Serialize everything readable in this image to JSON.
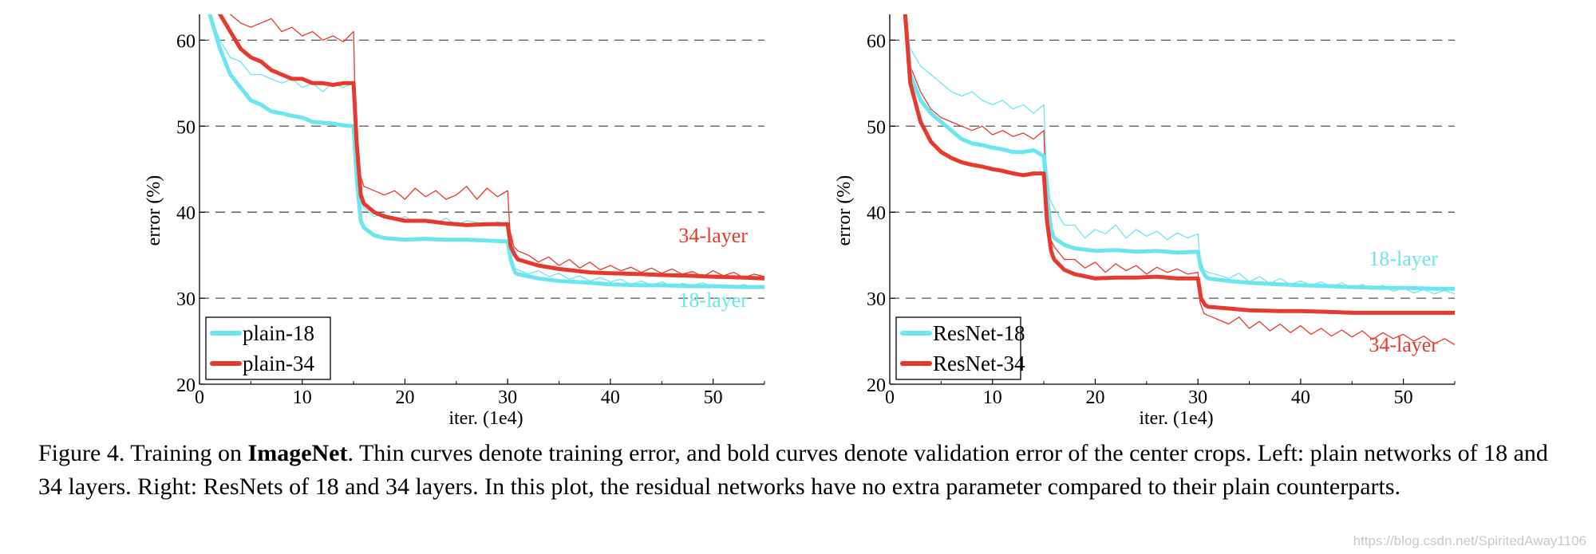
{
  "chart_data": [
    {
      "type": "line",
      "xlabel": "iter. (1e4)",
      "ylabel": "error (%)",
      "xlim": [
        0,
        55
      ],
      "ylim": [
        20,
        63
      ],
      "x_ticks": [
        0,
        10,
        20,
        30,
        40,
        50
      ],
      "y_ticks": [
        20,
        30,
        40,
        50,
        60
      ],
      "grid": "horizontal dashed",
      "legend_position": "bottom-left",
      "series": [
        {
          "name": "plain-18",
          "color": "#6be6f0",
          "style": "bold",
          "x": [
            1,
            2,
            3,
            4,
            5,
            6,
            7,
            8,
            9,
            10,
            11,
            12,
            13,
            14,
            15,
            15.3,
            15.7,
            16,
            17,
            18,
            20,
            22,
            24,
            26,
            28,
            30,
            30.3,
            30.7,
            31,
            33,
            35,
            38,
            40,
            43,
            45,
            48,
            50,
            53,
            55
          ],
          "y": [
            63,
            59,
            56,
            54.5,
            53,
            52.5,
            51.7,
            51.5,
            51.2,
            51,
            50.5,
            50.4,
            50.3,
            50.1,
            50,
            44,
            39,
            38.2,
            37.3,
            37,
            36.8,
            36.9,
            36.8,
            36.8,
            36.7,
            36.6,
            34.5,
            33,
            32.8,
            32.3,
            32.0,
            31.8,
            31.6,
            31.5,
            31.5,
            31.4,
            31.4,
            31.3,
            31.3
          ]
        },
        {
          "name": "plain-34",
          "color": "#e63a2e",
          "style": "bold",
          "x": [
            2,
            3,
            4,
            5,
            6,
            7,
            8,
            9,
            10,
            11,
            12,
            13,
            14,
            15,
            15.3,
            15.7,
            16,
            17,
            18,
            20,
            22,
            24,
            26,
            28,
            30,
            30.3,
            30.7,
            31,
            33,
            35,
            38,
            40,
            43,
            45,
            48,
            50,
            53,
            55
          ],
          "y": [
            63,
            61,
            59,
            58,
            57.5,
            56.5,
            56,
            55.5,
            55.5,
            55,
            55,
            54.8,
            55,
            55,
            48,
            42,
            41,
            40,
            39.5,
            39,
            39,
            38.7,
            38.5,
            38.6,
            38.6,
            36,
            35,
            34.5,
            33.8,
            33.4,
            33.0,
            32.9,
            32.8,
            32.7,
            32.6,
            32.5,
            32.4,
            32.3
          ]
        },
        {
          "name": "plain-18 training",
          "color": "#6be6f0",
          "style": "thin",
          "x": [
            1,
            2,
            3,
            4,
            5,
            6,
            7,
            8,
            9,
            10,
            11,
            12,
            13,
            14,
            15,
            15.2,
            15.6,
            16,
            17,
            18,
            19,
            20,
            21,
            22,
            23,
            24,
            25,
            26,
            27,
            28,
            29,
            30,
            30.2,
            30.6,
            31,
            32,
            33,
            34,
            35,
            36,
            37,
            38,
            39,
            40,
            41,
            42,
            43,
            44,
            45,
            46,
            47,
            48,
            49,
            50,
            51,
            52,
            53,
            54,
            55
          ],
          "y": [
            63,
            60,
            58,
            57.5,
            56,
            56,
            55.5,
            55,
            55.5,
            54.5,
            55,
            54,
            55,
            54.5,
            55,
            46,
            41.5,
            40.5,
            39.5,
            39.8,
            39,
            39.5,
            38.8,
            39.2,
            38.7,
            39.3,
            38.5,
            39,
            38.8,
            38.4,
            38.9,
            38.6,
            35,
            33.5,
            33.3,
            32.8,
            33.2,
            32.5,
            32.9,
            32.2,
            32.6,
            32,
            32.4,
            31.9,
            32.2,
            31.6,
            32,
            31.5,
            31.9,
            31.4,
            31.7,
            31.5,
            31.8,
            31.2,
            31.5,
            31.3,
            31.6,
            31.2,
            31.4
          ]
        },
        {
          "name": "plain-34 training",
          "color": "#e63a2e",
          "style": "thin",
          "x": [
            3,
            4,
            5,
            6,
            7,
            8,
            9,
            10,
            11,
            12,
            13,
            14,
            15,
            15.2,
            15.6,
            16,
            17,
            18,
            19,
            20,
            21,
            22,
            23,
            24,
            25,
            26,
            27,
            28,
            29,
            30,
            30.2,
            30.6,
            31,
            32,
            33,
            34,
            35,
            36,
            37,
            38,
            39,
            40,
            41,
            42,
            43,
            44,
            45,
            46,
            47,
            48,
            49,
            50,
            51,
            52,
            53,
            54,
            55
          ],
          "y": [
            63,
            62,
            61.5,
            62,
            62.5,
            61,
            61.5,
            60.5,
            61,
            60,
            60.5,
            59.8,
            61,
            50,
            44.5,
            43,
            42.5,
            42,
            42.5,
            41.5,
            42.8,
            41.8,
            42.5,
            41.5,
            42,
            43,
            41.5,
            42.8,
            41.8,
            42.5,
            38,
            36,
            35.5,
            35,
            34.2,
            34.8,
            33.8,
            34.5,
            33.5,
            34.2,
            33.3,
            33.8,
            33.2,
            33.6,
            33,
            33.5,
            32.9,
            33.4,
            32.8,
            33.1,
            32.5,
            33.2,
            32.6,
            33,
            32.4,
            32.8,
            32.5
          ]
        }
      ],
      "annotations": [
        {
          "text": "34-layer",
          "color": "#e63a2e",
          "x": 50,
          "y": 36.5
        },
        {
          "text": "18-layer",
          "color": "#6be6f0",
          "x": 50,
          "y": 29
        }
      ]
    },
    {
      "type": "line",
      "xlabel": "iter. (1e4)",
      "ylabel": "error (%)",
      "xlim": [
        0,
        55
      ],
      "ylim": [
        20,
        63
      ],
      "x_ticks": [
        0,
        10,
        20,
        30,
        40,
        50
      ],
      "y_ticks": [
        20,
        30,
        40,
        50,
        60
      ],
      "grid": "horizontal dashed",
      "legend_position": "bottom-left",
      "series": [
        {
          "name": "ResNet-18",
          "color": "#6be6f0",
          "style": "bold",
          "x": [
            1.5,
            2,
            3,
            4,
            5,
            6,
            7,
            8,
            9,
            10,
            11,
            12,
            13,
            14,
            15,
            15.3,
            15.7,
            16,
            17,
            18,
            20,
            22,
            24,
            26,
            28,
            30,
            30.3,
            30.7,
            31,
            33,
            35,
            38,
            40,
            43,
            45,
            48,
            50,
            53,
            55
          ],
          "y": [
            63,
            56,
            53,
            51.5,
            50.5,
            49.5,
            48.5,
            48,
            47.8,
            47.5,
            47.3,
            47,
            47,
            47.2,
            46.5,
            42,
            38,
            37,
            36.2,
            35.8,
            35.5,
            35.6,
            35.4,
            35.5,
            35.3,
            35.4,
            33.5,
            32.6,
            32.3,
            32.0,
            31.8,
            31.6,
            31.5,
            31.4,
            31.3,
            31.2,
            31.2,
            31.1,
            31.1
          ]
        },
        {
          "name": "ResNet-34",
          "color": "#e63a2e",
          "style": "bold",
          "x": [
            1.5,
            2,
            3,
            4,
            5,
            6,
            7,
            8,
            9,
            10,
            11,
            12,
            13,
            14,
            15,
            15.3,
            15.7,
            16,
            17,
            18,
            20,
            22,
            24,
            26,
            28,
            30,
            30.3,
            30.7,
            31,
            33,
            35,
            38,
            40,
            43,
            45,
            48,
            50,
            53,
            55
          ],
          "y": [
            63,
            55,
            50.5,
            48.2,
            47,
            46.3,
            45.8,
            45.5,
            45.3,
            45,
            44.8,
            44.5,
            44.3,
            44.5,
            44.5,
            39,
            35.5,
            34.5,
            33.3,
            32.8,
            32.3,
            32.4,
            32.4,
            32.5,
            32.3,
            32.3,
            30,
            29.2,
            29,
            28.8,
            28.6,
            28.5,
            28.5,
            28.4,
            28.3,
            28.3,
            28.3,
            28.3,
            28.3
          ]
        },
        {
          "name": "ResNet-18 training",
          "color": "#6be6f0",
          "style": "thin",
          "x": [
            1.5,
            2,
            3,
            4,
            5,
            6,
            7,
            8,
            9,
            10,
            11,
            12,
            13,
            14,
            15,
            15.2,
            15.6,
            16,
            17,
            18,
            19,
            20,
            21,
            22,
            23,
            24,
            25,
            26,
            27,
            28,
            29,
            30,
            30.2,
            30.6,
            31,
            32,
            33,
            34,
            35,
            36,
            37,
            38,
            39,
            40,
            41,
            42,
            43,
            44,
            45,
            46,
            47,
            48,
            49,
            50,
            51,
            52,
            53,
            54,
            55
          ],
          "y": [
            63,
            59,
            57,
            56,
            55,
            54,
            53.5,
            54,
            53,
            52.5,
            53,
            52,
            52.5,
            51.5,
            52.5,
            46,
            41.5,
            40.5,
            38.5,
            38.5,
            37,
            38,
            37.5,
            38.5,
            37,
            38,
            37.2,
            37.8,
            36.8,
            37.6,
            37,
            37.5,
            34.5,
            33.3,
            33,
            32.7,
            32.3,
            32.9,
            31.9,
            32.5,
            31.7,
            32.3,
            31.6,
            32,
            31.5,
            31.9,
            31.3,
            31.8,
            31.2,
            31.6,
            31,
            31.5,
            30.8,
            31.2,
            30.6,
            31,
            30.5,
            30.9,
            30.5
          ]
        },
        {
          "name": "ResNet-34 training",
          "color": "#e63a2e",
          "style": "thin",
          "x": [
            1.5,
            2,
            3,
            4,
            5,
            6,
            7,
            8,
            9,
            10,
            11,
            12,
            13,
            14,
            15,
            15.2,
            15.6,
            16,
            17,
            18,
            19,
            20,
            21,
            22,
            23,
            24,
            25,
            26,
            27,
            28,
            29,
            30,
            30.2,
            30.6,
            31,
            32,
            33,
            34,
            35,
            36,
            37,
            38,
            39,
            40,
            41,
            42,
            43,
            44,
            45,
            46,
            47,
            48,
            49,
            50,
            51,
            52,
            53,
            54,
            55
          ],
          "y": [
            63,
            57,
            54,
            52,
            51,
            50.5,
            50,
            49.5,
            50,
            49,
            49.5,
            48.8,
            49.2,
            48.5,
            49.5,
            42,
            37,
            36,
            34.5,
            34.5,
            33.5,
            34.2,
            33,
            34,
            33.2,
            33.8,
            32.8,
            33.6,
            33,
            33.4,
            32.8,
            33,
            29.5,
            28.2,
            28,
            27.5,
            27,
            27.8,
            26.5,
            27.3,
            26.2,
            27,
            26,
            26.8,
            25.8,
            26.5,
            25.6,
            26.3,
            25.5,
            26.2,
            25.2,
            26,
            25.3,
            25.8,
            25,
            25.6,
            24.7,
            25.3,
            24.6
          ]
        }
      ],
      "annotations": [
        {
          "text": "18-layer",
          "color": "#6be6f0",
          "x": 50,
          "y": 33.8
        },
        {
          "text": "34-layer",
          "color": "#e63a2e",
          "x": 50,
          "y": 23.8
        }
      ]
    }
  ],
  "caption": {
    "prefix": "Figure 4. Training on ",
    "bold": "ImageNet",
    "rest": ". Thin curves denote training error, and bold curves denote validation error of the center crops. Left: plain networks of 18 and 34 layers. Right: ResNets of 18 and 34 layers. In this plot, the residual networks have no extra parameter compared to their plain counterparts."
  },
  "watermark": "https://blog.csdn.net/SpiritedAway1106"
}
